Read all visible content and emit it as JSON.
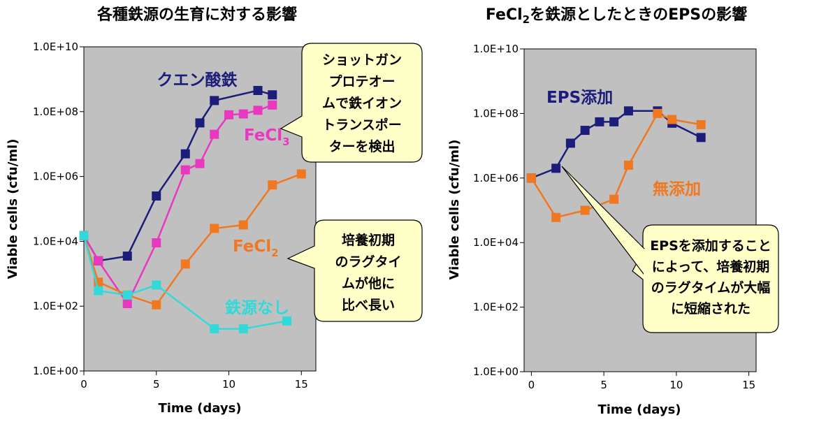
{
  "chart_data": [
    {
      "type": "line",
      "title": "各種鉄源の生育に対する影響",
      "xlabel": "Time (days)",
      "ylabel": "Viable cells (cfu/ml)",
      "xlim": [
        0,
        16
      ],
      "ylim": [
        1,
        10000000000
      ],
      "yscale": "log",
      "x_ticks": [
        "0",
        "5",
        "10",
        "15"
      ],
      "y_ticks": [
        "1.0E+00",
        "1.0E+02",
        "1.0E+04",
        "1.0E+06",
        "1.0E+08",
        "1.0E+10"
      ],
      "grid": false,
      "series": [
        {
          "name": "クエン酸鉄",
          "color": "#1c1c7a",
          "x": [
            0,
            1,
            3,
            5,
            7,
            8,
            9,
            12,
            13
          ],
          "y": [
            15000,
            2500,
            3500,
            250000,
            5000000,
            45000000,
            220000000,
            450000000,
            330000000
          ]
        },
        {
          "name": "FeCl3",
          "name_base": "FeCl",
          "name_sub": "3",
          "color": "#e838c0",
          "x": [
            0,
            1,
            3,
            5,
            7,
            8,
            9,
            10,
            11,
            12,
            13
          ],
          "y": [
            15000,
            2500,
            120,
            9000,
            1600000,
            2500000,
            20000000,
            80000000,
            85000000,
            110000000,
            160000000
          ]
        },
        {
          "name": "FeCl2",
          "name_base": "FeCl",
          "name_sub": "2",
          "color": "#f07820",
          "x": [
            0,
            1,
            3,
            5,
            7,
            9,
            11,
            13,
            15
          ],
          "y": [
            15000,
            550,
            220,
            110,
            2000,
            25000,
            32000,
            550000,
            1200000
          ]
        },
        {
          "name": "鉄源なし",
          "color": "#33d9d9",
          "x": [
            0,
            1,
            3,
            5,
            9,
            11,
            14
          ],
          "y": [
            15000,
            300,
            220,
            450,
            20,
            20,
            35
          ]
        }
      ],
      "callouts": [
        {
          "lines": [
            "ショットガン",
            "プロテオー",
            "ムで鉄イオン",
            "トランスポー",
            "ターを検出"
          ]
        },
        {
          "lines": [
            "培養初期",
            "のラグタイ",
            "ムが他に",
            "比べ長い"
          ]
        }
      ]
    },
    {
      "type": "line",
      "title": "FeCl2を鉄源としたときのEPSの影響",
      "title_parts": [
        "FeCl",
        "2",
        "を鉄源としたときのEPSの影響"
      ],
      "xlabel": "Time (days)",
      "ylabel": "Viable cells (cfu/ml)",
      "xlim": [
        -0.5,
        15.5
      ],
      "ylim": [
        1,
        10000000000
      ],
      "yscale": "log",
      "x_ticks": [
        "0",
        "5",
        "10",
        "15"
      ],
      "y_ticks": [
        "1.0E+00",
        "1.0E+02",
        "1.0E+04",
        "1.0E+06",
        "1.0E+08",
        "1.0E+10"
      ],
      "grid": false,
      "series": [
        {
          "name": "EPS添加",
          "color": "#1c1c7a",
          "x": [
            0,
            1.7,
            2.7,
            3.7,
            4.7,
            5.7,
            6.7,
            8.7,
            9.7,
            11.7
          ],
          "y": [
            1000000,
            2000000,
            12000000,
            30000000,
            55000000,
            55000000,
            120000000,
            120000000,
            50000000,
            18000000
          ]
        },
        {
          "name": "無添加",
          "color": "#f07820",
          "x": [
            0,
            1.7,
            3.7,
            5.7,
            6.7,
            8.7,
            9.7,
            11.7
          ],
          "y": [
            1000000,
            60000,
            100000,
            220000,
            2500000,
            100000000,
            65000000,
            45000000
          ]
        }
      ],
      "callouts": [
        {
          "lines": [
            "EPSを添加すること",
            "によって、培養初期",
            "のラグタイムが大幅",
            "に短縮された"
          ]
        }
      ]
    }
  ]
}
